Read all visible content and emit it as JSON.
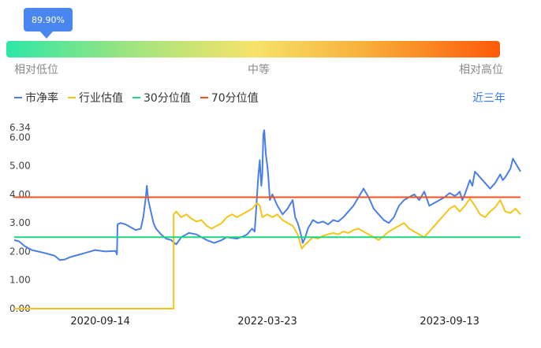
{
  "tooltip": {
    "value": "89.90%"
  },
  "percentile_bar": {
    "percentile": 89.9,
    "low_label": "相对低位",
    "mid_label": "中等",
    "high_label": "相对高位"
  },
  "legend": {
    "items": [
      {
        "label": "市净率",
        "color": "#4a7fe8"
      },
      {
        "label": "行业估值",
        "color": "#f5c518"
      },
      {
        "label": "30分位值",
        "color": "#1ed67f"
      },
      {
        "label": "70分位值",
        "color": "#f5501e"
      }
    ]
  },
  "range_button": {
    "label": "近三年"
  },
  "chart_data": {
    "type": "line",
    "ylim": [
      0.0,
      6.34
    ],
    "yticks": [
      "0.00",
      "1.00",
      "2.00",
      "3.00",
      "4.00",
      "5.00",
      "6.00",
      "6.34"
    ],
    "xticks": [
      "2020-09-14",
      "2022-03-23",
      "2023-09-13"
    ],
    "x_range": [
      0,
      1
    ],
    "series": [
      {
        "name": "市净率",
        "color": "#4a7fe8",
        "points": [
          [
            0.0,
            2.4
          ],
          [
            0.01,
            2.35
          ],
          [
            0.02,
            2.2
          ],
          [
            0.035,
            2.05
          ],
          [
            0.06,
            1.95
          ],
          [
            0.08,
            1.85
          ],
          [
            0.09,
            1.7
          ],
          [
            0.1,
            1.72
          ],
          [
            0.11,
            1.8
          ],
          [
            0.12,
            1.85
          ],
          [
            0.13,
            1.9
          ],
          [
            0.14,
            1.95
          ],
          [
            0.15,
            2.0
          ],
          [
            0.16,
            2.05
          ],
          [
            0.18,
            2.0
          ],
          [
            0.2,
            2.02
          ],
          [
            0.203,
            1.9
          ],
          [
            0.204,
            2.95
          ],
          [
            0.21,
            3.0
          ],
          [
            0.22,
            2.95
          ],
          [
            0.23,
            2.85
          ],
          [
            0.24,
            2.75
          ],
          [
            0.25,
            2.8
          ],
          [
            0.255,
            3.2
          ],
          [
            0.26,
            3.9
          ],
          [
            0.262,
            4.3
          ],
          [
            0.265,
            3.8
          ],
          [
            0.27,
            3.4
          ],
          [
            0.275,
            3.0
          ],
          [
            0.28,
            2.8
          ],
          [
            0.29,
            2.6
          ],
          [
            0.3,
            2.45
          ],
          [
            0.31,
            2.4
          ],
          [
            0.32,
            2.25
          ],
          [
            0.33,
            2.5
          ],
          [
            0.345,
            2.65
          ],
          [
            0.36,
            2.6
          ],
          [
            0.38,
            2.4
          ],
          [
            0.395,
            2.3
          ],
          [
            0.41,
            2.4
          ],
          [
            0.42,
            2.5
          ],
          [
            0.44,
            2.45
          ],
          [
            0.455,
            2.55
          ],
          [
            0.46,
            2.6
          ],
          [
            0.47,
            2.8
          ],
          [
            0.475,
            2.7
          ],
          [
            0.478,
            3.5
          ],
          [
            0.482,
            4.6
          ],
          [
            0.485,
            5.2
          ],
          [
            0.488,
            4.3
          ],
          [
            0.49,
            4.7
          ],
          [
            0.492,
            6.1
          ],
          [
            0.494,
            6.25
          ],
          [
            0.497,
            5.4
          ],
          [
            0.5,
            5.0
          ],
          [
            0.502,
            4.6
          ],
          [
            0.505,
            3.8
          ],
          [
            0.51,
            4.0
          ],
          [
            0.52,
            3.6
          ],
          [
            0.53,
            3.3
          ],
          [
            0.54,
            3.5
          ],
          [
            0.55,
            3.8
          ],
          [
            0.555,
            3.2
          ],
          [
            0.56,
            3.0
          ],
          [
            0.565,
            2.7
          ],
          [
            0.568,
            2.45
          ],
          [
            0.57,
            2.3
          ],
          [
            0.575,
            2.5
          ],
          [
            0.58,
            2.8
          ],
          [
            0.59,
            3.1
          ],
          [
            0.6,
            3.0
          ],
          [
            0.61,
            3.05
          ],
          [
            0.62,
            2.95
          ],
          [
            0.63,
            3.1
          ],
          [
            0.64,
            3.05
          ],
          [
            0.65,
            3.2
          ],
          [
            0.66,
            3.4
          ],
          [
            0.67,
            3.6
          ],
          [
            0.68,
            3.9
          ],
          [
            0.69,
            4.2
          ],
          [
            0.7,
            3.9
          ],
          [
            0.71,
            3.5
          ],
          [
            0.72,
            3.3
          ],
          [
            0.73,
            3.1
          ],
          [
            0.74,
            3.0
          ],
          [
            0.75,
            3.2
          ],
          [
            0.76,
            3.6
          ],
          [
            0.77,
            3.8
          ],
          [
            0.78,
            3.9
          ],
          [
            0.79,
            4.0
          ],
          [
            0.8,
            3.8
          ],
          [
            0.81,
            4.1
          ],
          [
            0.82,
            3.6
          ],
          [
            0.83,
            3.7
          ],
          [
            0.84,
            3.8
          ],
          [
            0.85,
            3.9
          ],
          [
            0.86,
            4.05
          ],
          [
            0.87,
            3.95
          ],
          [
            0.875,
            4.0
          ],
          [
            0.88,
            4.1
          ],
          [
            0.885,
            3.8
          ],
          [
            0.89,
            4.0
          ],
          [
            0.9,
            4.5
          ],
          [
            0.905,
            4.3
          ],
          [
            0.91,
            4.8
          ],
          [
            0.92,
            4.6
          ],
          [
            0.93,
            4.4
          ],
          [
            0.94,
            4.2
          ],
          [
            0.95,
            4.4
          ],
          [
            0.96,
            4.7
          ],
          [
            0.965,
            4.5
          ],
          [
            0.97,
            4.6
          ],
          [
            0.98,
            4.9
          ],
          [
            0.985,
            5.25
          ],
          [
            0.99,
            5.1
          ],
          [
            1.0,
            4.8
          ]
        ]
      },
      {
        "name": "行业估值",
        "color": "#f5c518",
        "points": [
          [
            0.0,
            0.0
          ],
          [
            0.1,
            0.0
          ],
          [
            0.2,
            0.0
          ],
          [
            0.3,
            0.0
          ],
          [
            0.3149,
            0.0
          ],
          [
            0.315,
            3.3
          ],
          [
            0.32,
            3.4
          ],
          [
            0.33,
            3.2
          ],
          [
            0.34,
            3.3
          ],
          [
            0.35,
            3.15
          ],
          [
            0.36,
            3.05
          ],
          [
            0.37,
            3.1
          ],
          [
            0.38,
            2.9
          ],
          [
            0.39,
            2.8
          ],
          [
            0.4,
            2.9
          ],
          [
            0.41,
            3.0
          ],
          [
            0.42,
            3.2
          ],
          [
            0.43,
            3.3
          ],
          [
            0.44,
            3.2
          ],
          [
            0.45,
            3.3
          ],
          [
            0.46,
            3.4
          ],
          [
            0.47,
            3.5
          ],
          [
            0.48,
            3.7
          ],
          [
            0.485,
            3.6
          ],
          [
            0.49,
            3.2
          ],
          [
            0.5,
            3.3
          ],
          [
            0.51,
            3.2
          ],
          [
            0.52,
            3.3
          ],
          [
            0.53,
            3.1
          ],
          [
            0.54,
            3.0
          ],
          [
            0.55,
            2.9
          ],
          [
            0.56,
            2.6
          ],
          [
            0.565,
            2.3
          ],
          [
            0.568,
            2.1
          ],
          [
            0.575,
            2.25
          ],
          [
            0.59,
            2.5
          ],
          [
            0.6,
            2.45
          ],
          [
            0.61,
            2.55
          ],
          [
            0.62,
            2.6
          ],
          [
            0.63,
            2.65
          ],
          [
            0.64,
            2.6
          ],
          [
            0.65,
            2.7
          ],
          [
            0.66,
            2.65
          ],
          [
            0.67,
            2.75
          ],
          [
            0.68,
            2.8
          ],
          [
            0.69,
            2.7
          ],
          [
            0.7,
            2.6
          ],
          [
            0.71,
            2.5
          ],
          [
            0.72,
            2.4
          ],
          [
            0.73,
            2.55
          ],
          [
            0.74,
            2.7
          ],
          [
            0.75,
            2.8
          ],
          [
            0.76,
            2.9
          ],
          [
            0.77,
            3.0
          ],
          [
            0.78,
            2.8
          ],
          [
            0.79,
            2.7
          ],
          [
            0.8,
            2.6
          ],
          [
            0.81,
            2.5
          ],
          [
            0.82,
            2.7
          ],
          [
            0.83,
            2.9
          ],
          [
            0.84,
            3.1
          ],
          [
            0.85,
            3.3
          ],
          [
            0.86,
            3.5
          ],
          [
            0.87,
            3.6
          ],
          [
            0.88,
            3.4
          ],
          [
            0.89,
            3.6
          ],
          [
            0.9,
            3.85
          ],
          [
            0.91,
            3.6
          ],
          [
            0.92,
            3.3
          ],
          [
            0.93,
            3.2
          ],
          [
            0.94,
            3.4
          ],
          [
            0.95,
            3.55
          ],
          [
            0.96,
            3.8
          ],
          [
            0.97,
            3.4
          ],
          [
            0.98,
            3.35
          ],
          [
            0.99,
            3.5
          ],
          [
            1.0,
            3.3
          ]
        ]
      },
      {
        "name": "30分位值",
        "color": "#1ed67f",
        "constant": 2.5
      },
      {
        "name": "70分位值",
        "color": "#f5501e",
        "constant": 3.9
      }
    ]
  }
}
